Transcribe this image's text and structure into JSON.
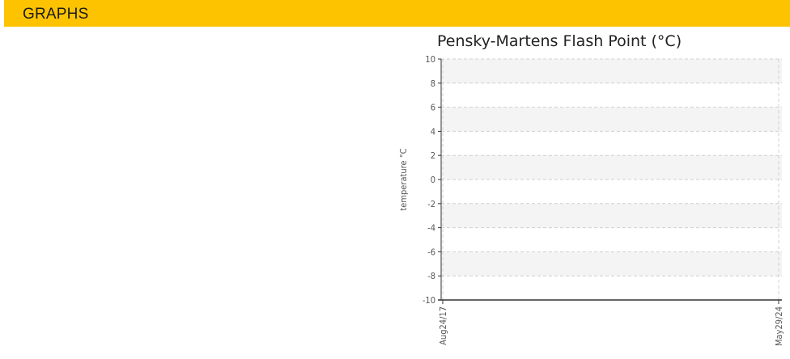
{
  "header": {
    "title": "GRAPHS"
  },
  "colors": {
    "header_bg": "#fdc300",
    "band_fill": "#f4f4f4",
    "grid": "#cfcfcf",
    "axis": "#333333",
    "text": "#555555"
  },
  "chart_data": {
    "type": "line",
    "title": "Pensky-Martens Flash Point (°C)",
    "xlabel": "",
    "ylabel": "temperature °C",
    "ylim": [
      -10,
      10
    ],
    "yticks": [
      10,
      8,
      6,
      4,
      2,
      0,
      -2,
      -4,
      -6,
      -8,
      -10
    ],
    "xticks": [
      "Aug24/17",
      "May29/24"
    ],
    "grid": true,
    "series": []
  }
}
